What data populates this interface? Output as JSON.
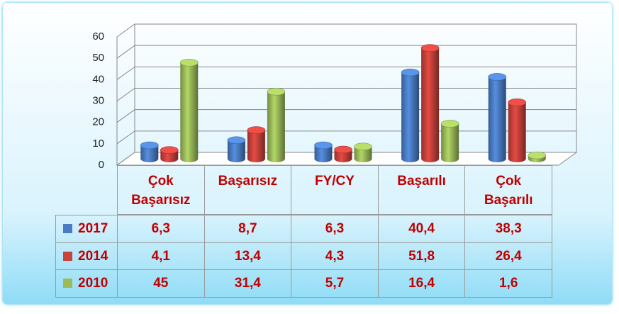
{
  "chart_data": {
    "type": "bar3d",
    "categories": [
      "Çok Başarısız",
      "Başarısız",
      "FY/CY",
      "Başarılı",
      "Çok Başarılı"
    ],
    "series": [
      {
        "name": "2017",
        "color": "#4a7cc4",
        "values": [
          6.3,
          8.7,
          6.3,
          40.4,
          38.3
        ],
        "value_labels": [
          "6,3",
          "8,7",
          "6,3",
          "40,4",
          "38,3"
        ]
      },
      {
        "name": "2014",
        "color": "#c8413b",
        "values": [
          4.1,
          13.4,
          4.3,
          51.8,
          26.4
        ],
        "value_labels": [
          "4,1",
          "13,4",
          "4,3",
          "51,8",
          "26,4"
        ]
      },
      {
        "name": "2010",
        "color": "#9bbb59",
        "values": [
          45,
          31.4,
          5.7,
          16.4,
          1.6
        ],
        "value_labels": [
          "45",
          "31,4",
          "5,7",
          "16,4",
          "1,6"
        ]
      }
    ],
    "ylim": [
      0,
      60
    ],
    "yticks": [
      0,
      10,
      20,
      30,
      40,
      50,
      60
    ],
    "grid": true
  }
}
